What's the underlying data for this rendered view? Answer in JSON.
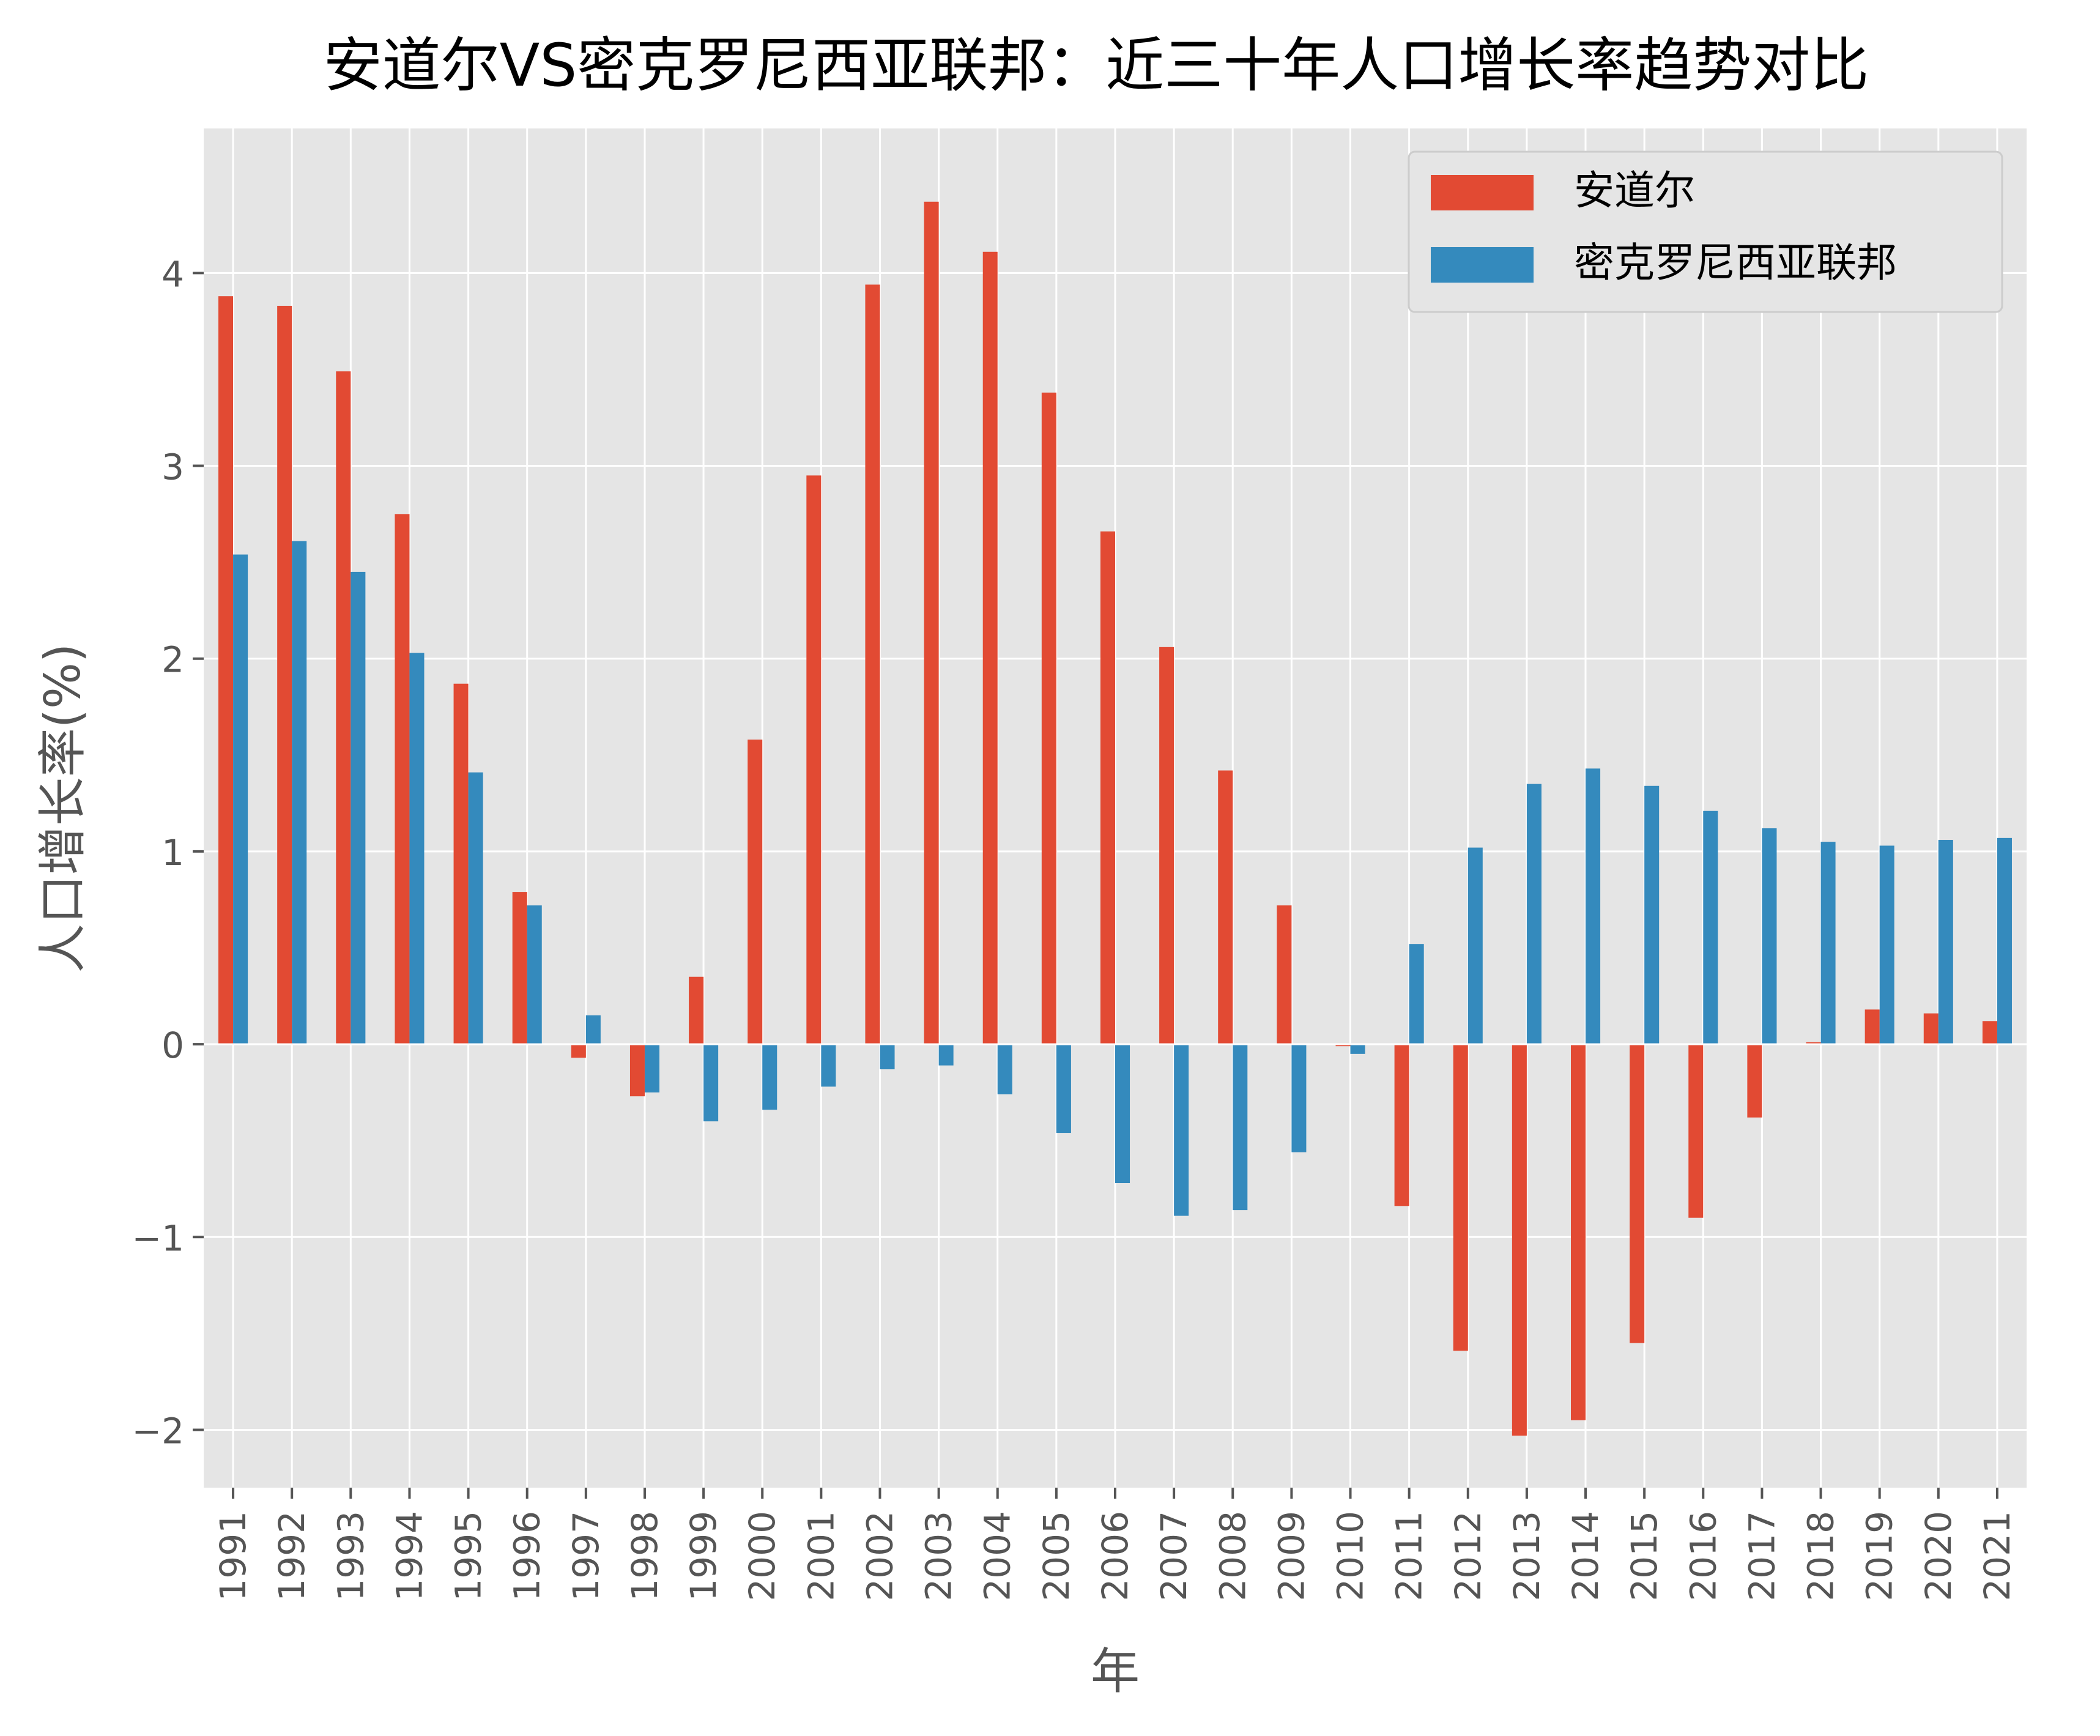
{
  "chart_data": {
    "type": "bar",
    "title": "安道尔VS密克罗尼西亚联邦：近三十年人口增长率趋势对比",
    "xlabel": "年",
    "ylabel": "人口增长率(%)",
    "categories": [
      "1991",
      "1992",
      "1993",
      "1994",
      "1995",
      "1996",
      "1997",
      "1998",
      "1999",
      "2000",
      "2001",
      "2002",
      "2003",
      "2004",
      "2005",
      "2006",
      "2007",
      "2008",
      "2009",
      "2010",
      "2011",
      "2012",
      "2013",
      "2014",
      "2015",
      "2016",
      "2017",
      "2018",
      "2019",
      "2020",
      "2021"
    ],
    "series": [
      {
        "name": "安道尔",
        "color": "#E24A33",
        "values": [
          3.88,
          3.83,
          3.49,
          2.75,
          1.87,
          0.79,
          -0.07,
          -0.27,
          0.35,
          1.58,
          2.95,
          3.94,
          4.37,
          4.11,
          3.38,
          2.66,
          2.06,
          1.42,
          0.72,
          -0.01,
          -0.84,
          -1.59,
          -2.03,
          -1.95,
          -1.55,
          -0.9,
          -0.38,
          0.01,
          0.18,
          0.16,
          0.12
        ]
      },
      {
        "name": "密克罗尼西亚联邦",
        "color": "#348ABD",
        "values": [
          2.54,
          2.61,
          2.45,
          2.03,
          1.41,
          0.72,
          0.15,
          -0.25,
          -0.4,
          -0.34,
          -0.22,
          -0.13,
          -0.11,
          -0.26,
          -0.46,
          -0.72,
          -0.89,
          -0.86,
          -0.56,
          -0.05,
          0.52,
          1.02,
          1.35,
          1.43,
          1.34,
          1.21,
          1.12,
          1.05,
          1.03,
          1.06,
          1.07
        ]
      }
    ],
    "ylim": [
      -2.3,
      4.75
    ],
    "yticks": [
      -2,
      -1,
      0,
      1,
      2,
      3,
      4
    ],
    "ytick_labels": [
      "−2",
      "−1",
      "0",
      "1",
      "2",
      "3",
      "4"
    ],
    "grid": true,
    "legend_position": "top-right"
  }
}
